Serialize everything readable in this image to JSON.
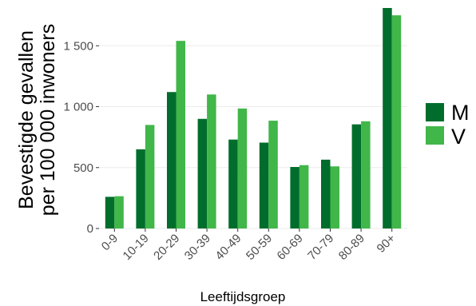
{
  "chart_data": {
    "type": "bar",
    "xlabel": "Leeftijdsgroep",
    "ylabel_lines": [
      "Bevestigde gevallen",
      "per 100 000 inwoners"
    ],
    "categories": [
      "0-9",
      "10-19",
      "20-29",
      "30-39",
      "40-49",
      "50-59",
      "60-69",
      "70-79",
      "80-89",
      "90+"
    ],
    "series": [
      {
        "name": "M",
        "color": "#006d2c",
        "values": [
          260,
          650,
          1120,
          900,
          730,
          705,
          505,
          565,
          855,
          1810
        ]
      },
      {
        "name": "V",
        "color": "#41b649",
        "values": [
          265,
          850,
          1540,
          1100,
          985,
          885,
          520,
          510,
          880,
          1750
        ]
      }
    ],
    "ylim": [
      0,
      1810
    ],
    "yticks": [
      0,
      500,
      1000,
      1500
    ],
    "ytick_labels": [
      "0",
      "500",
      "1 000",
      "1 500"
    ],
    "grid": true,
    "legend_position": "right"
  }
}
